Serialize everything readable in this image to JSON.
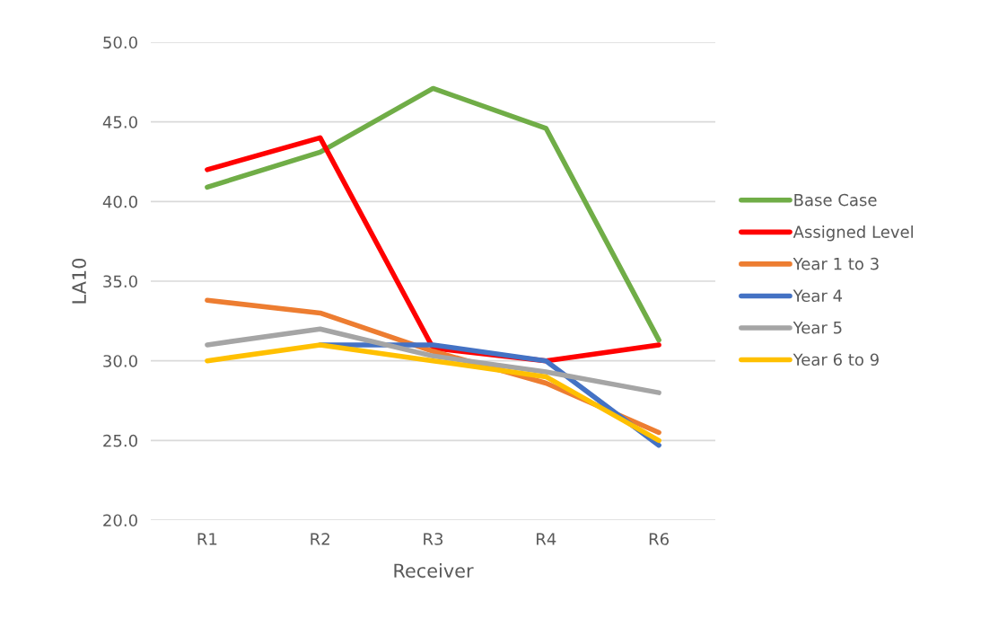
{
  "chart_data": {
    "type": "line",
    "xlabel": "Receiver",
    "ylabel": "LA10",
    "categories": [
      "R1",
      "R2",
      "R3",
      "R4",
      "R6"
    ],
    "series": [
      {
        "name": "Base Case",
        "color": "#70ad47",
        "values": [
          40.9,
          43.1,
          47.1,
          44.6,
          31.3
        ]
      },
      {
        "name": "Assigned Level",
        "color": "#ff0000",
        "values": [
          42.0,
          44.0,
          30.8,
          30.0,
          31.0
        ]
      },
      {
        "name": "Year 1 to 3",
        "color": "#ed7d31",
        "values": [
          33.8,
          33.0,
          30.6,
          28.6,
          25.5
        ]
      },
      {
        "name": "Year 4",
        "color": "#4472c4",
        "values": [
          null,
          31.0,
          31.0,
          30.0,
          24.7
        ]
      },
      {
        "name": "Year 5",
        "color": "#a5a5a5",
        "values": [
          31.0,
          32.0,
          30.3,
          29.3,
          28.0
        ]
      },
      {
        "name": "Year 6 to 9",
        "color": "#ffc000",
        "values": [
          30.0,
          31.0,
          30.0,
          29.0,
          25.0
        ]
      }
    ],
    "ylim": [
      20,
      50
    ],
    "yticks": [
      {
        "value": 20,
        "label": "20.0"
      },
      {
        "value": 25,
        "label": "25.0"
      },
      {
        "value": 30,
        "label": "30.0"
      },
      {
        "value": 35,
        "label": "35.0"
      },
      {
        "value": 40,
        "label": "40.0"
      },
      {
        "value": 45,
        "label": "45.0"
      },
      {
        "value": 50,
        "label": "50.0"
      }
    ],
    "grid": "y",
    "legend": "right",
    "marker": "none",
    "line_style": "solid"
  }
}
